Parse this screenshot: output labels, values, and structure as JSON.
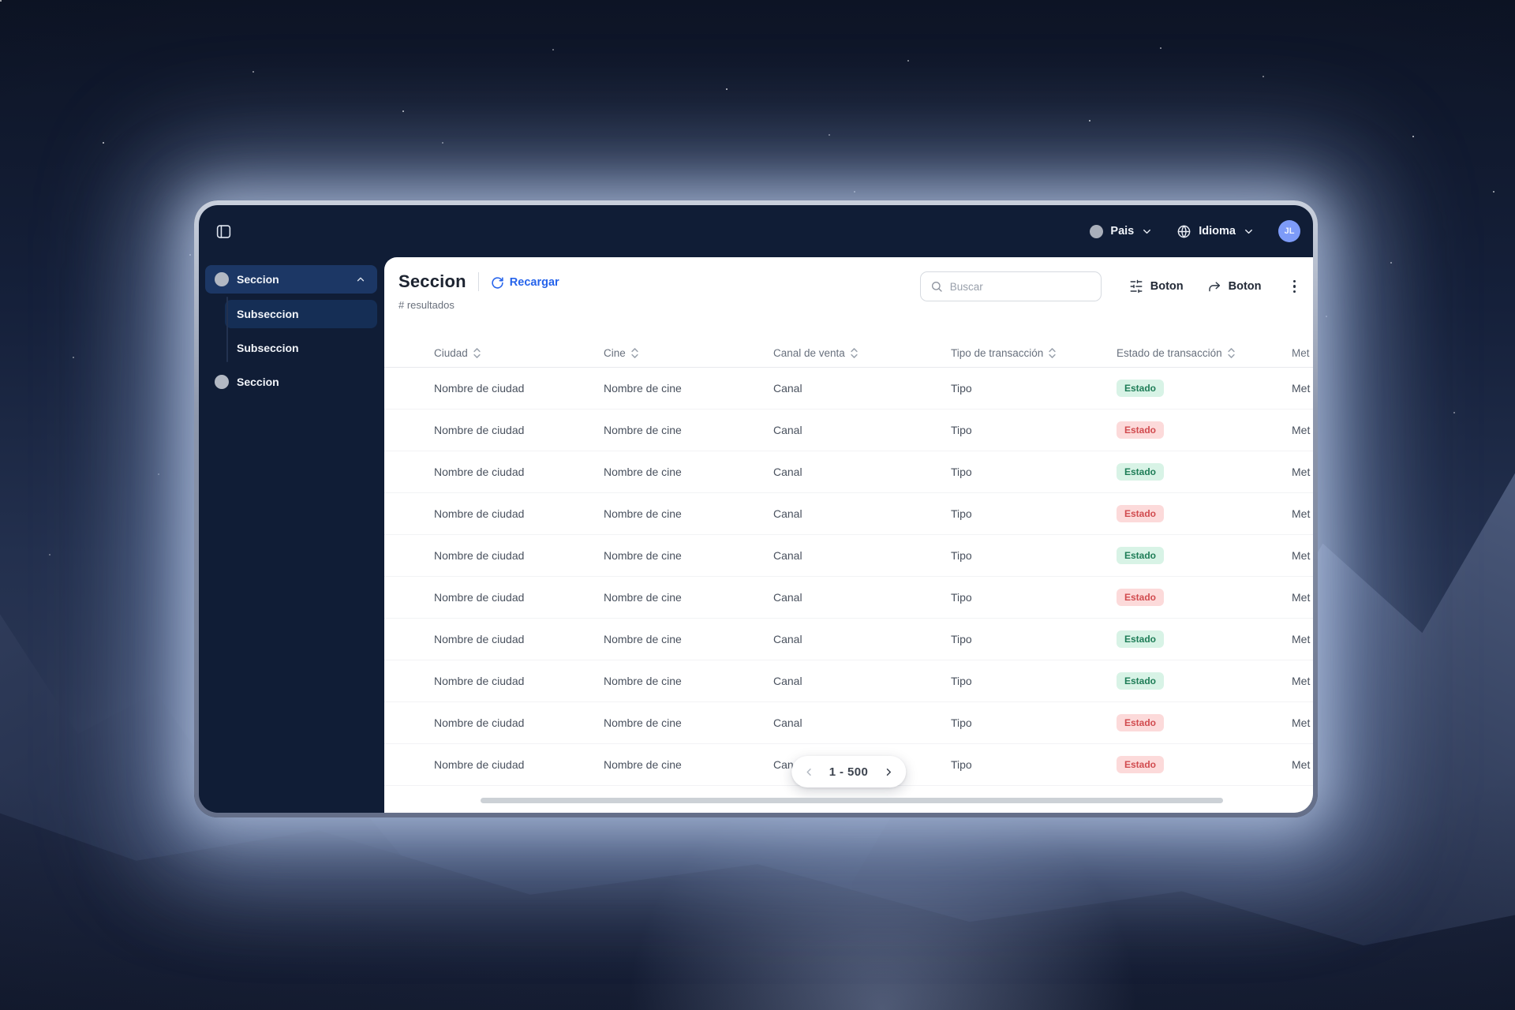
{
  "topbar": {
    "country_label": "Pais",
    "language_label": "Idioma",
    "avatar_initials": "JL"
  },
  "sidebar": {
    "items": [
      {
        "label": "Seccion",
        "type": "section",
        "active": true,
        "expanded": true
      },
      {
        "label": "Subseccion",
        "type": "subsection",
        "active": true
      },
      {
        "label": "Subseccion",
        "type": "subsection",
        "active": false
      },
      {
        "label": "Seccion",
        "type": "section",
        "active": false,
        "expanded": false
      }
    ]
  },
  "header": {
    "title": "Seccion",
    "reload_label": "Recargar",
    "results_label": "# resultados",
    "search_placeholder": "Buscar",
    "filter_button_label": "Boton",
    "export_button_label": "Boton"
  },
  "table": {
    "columns": [
      {
        "label": "Ciudad",
        "sortable": true
      },
      {
        "label": "Cine",
        "sortable": true
      },
      {
        "label": "Canal de venta",
        "sortable": true
      },
      {
        "label": "Tipo de transacción",
        "sortable": true
      },
      {
        "label": "Estado de transacción",
        "sortable": true
      },
      {
        "label": "Met",
        "sortable": false
      }
    ],
    "rows": [
      {
        "ciudad": "Nombre de ciudad",
        "cine": "Nombre de cine",
        "canal": "Canal",
        "tipo": "Tipo",
        "estado": "Estado",
        "estado_state": "green",
        "met": "Met"
      },
      {
        "ciudad": "Nombre de ciudad",
        "cine": "Nombre de cine",
        "canal": "Canal",
        "tipo": "Tipo",
        "estado": "Estado",
        "estado_state": "red",
        "met": "Met"
      },
      {
        "ciudad": "Nombre de ciudad",
        "cine": "Nombre de cine",
        "canal": "Canal",
        "tipo": "Tipo",
        "estado": "Estado",
        "estado_state": "green",
        "met": "Met"
      },
      {
        "ciudad": "Nombre de ciudad",
        "cine": "Nombre de cine",
        "canal": "Canal",
        "tipo": "Tipo",
        "estado": "Estado",
        "estado_state": "red",
        "met": "Met"
      },
      {
        "ciudad": "Nombre de ciudad",
        "cine": "Nombre de cine",
        "canal": "Canal",
        "tipo": "Tipo",
        "estado": "Estado",
        "estado_state": "green",
        "met": "Met"
      },
      {
        "ciudad": "Nombre de ciudad",
        "cine": "Nombre de cine",
        "canal": "Canal",
        "tipo": "Tipo",
        "estado": "Estado",
        "estado_state": "red",
        "met": "Met"
      },
      {
        "ciudad": "Nombre de ciudad",
        "cine": "Nombre de cine",
        "canal": "Canal",
        "tipo": "Tipo",
        "estado": "Estado",
        "estado_state": "green",
        "met": "Met"
      },
      {
        "ciudad": "Nombre de ciudad",
        "cine": "Nombre de cine",
        "canal": "Canal",
        "tipo": "Tipo",
        "estado": "Estado",
        "estado_state": "green",
        "met": "Met"
      },
      {
        "ciudad": "Nombre de ciudad",
        "cine": "Nombre de cine",
        "canal": "Canal",
        "tipo": "Tipo",
        "estado": "Estado",
        "estado_state": "red",
        "met": "Met"
      },
      {
        "ciudad": "Nombre de ciudad",
        "cine": "Nombre de cine",
        "canal": "Canal",
        "tipo": "Tipo",
        "estado": "Estado",
        "estado_state": "red",
        "met": "Met"
      }
    ]
  },
  "pagination": {
    "range_label": "1 - 500"
  },
  "colors": {
    "accent": "#2563eb",
    "avatar_bg": "#7d9bf8",
    "badge_green_bg": "#d8f3e6",
    "badge_green_text": "#1e7d57",
    "badge_red_bg": "#fcdada",
    "badge_red_text": "#d14b4f",
    "sidebar_bg": "#101d36",
    "active_item_bg": "#1c3765"
  }
}
